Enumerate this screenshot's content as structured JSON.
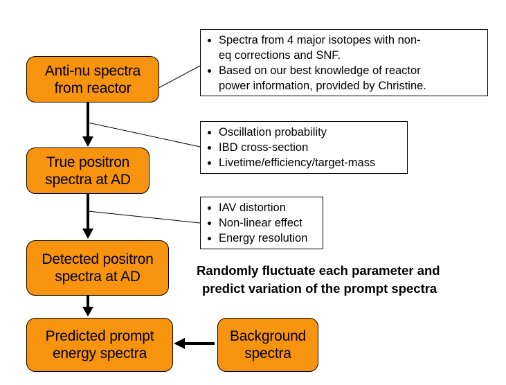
{
  "boxes": {
    "reactor": {
      "line1": "Anti-nu spectra",
      "line2": "from reactor"
    },
    "true_positron": {
      "line1": "True positron",
      "line2": "spectra at AD"
    },
    "detected_positron": {
      "line1": "Detected positron",
      "line2": "spectra at AD"
    },
    "predicted_prompt": {
      "line1": "Predicted prompt",
      "line2": "energy spectra"
    },
    "background": {
      "line1": "Background",
      "line2": "spectra"
    }
  },
  "notes": {
    "reactor": [
      [
        "Spectra from 4 major isotopes with non-",
        "eq corrections and SNF."
      ],
      [
        "Based on our best knowledge of reactor",
        "power information, provided by Christine."
      ]
    ],
    "true_positron": [
      [
        "Oscillation probability"
      ],
      [
        "IBD cross-section"
      ],
      [
        "Livetime/efficiency/target-mass"
      ]
    ],
    "detected_positron": [
      [
        "IAV distortion"
      ],
      [
        "Non-linear effect"
      ],
      [
        "Energy resolution"
      ]
    ]
  },
  "callout": {
    "line1": "Randomly fluctuate each parameter and",
    "line2": "predict variation of the prompt spectra"
  },
  "colors": {
    "box_fill": "#f7940f",
    "stroke": "#000000"
  }
}
